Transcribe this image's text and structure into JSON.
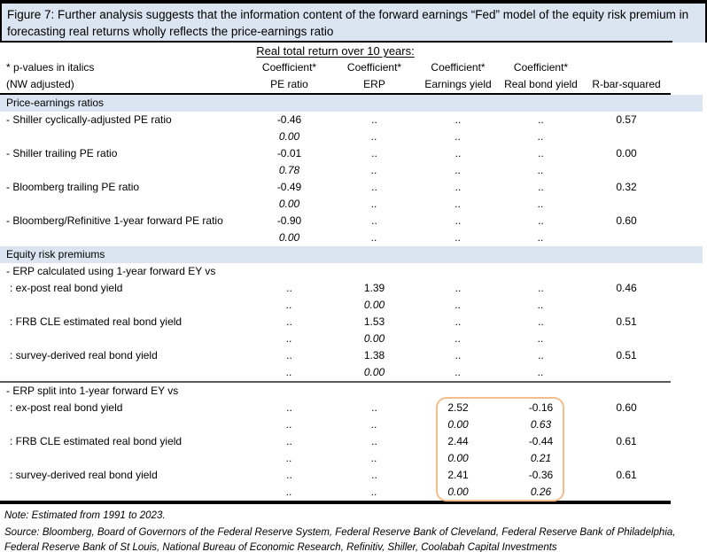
{
  "colors": {
    "section_fill": "#dbe5f1",
    "highlight_border": "#f4bd8a"
  },
  "figure": {
    "title": "Figure 7: Further analysis suggests that the information content of the forward earnings “Fed” model of the equity risk premium in forecasting real returns wholly reflects the price-earnings ratio",
    "note": "Note: Estimated from 1991 to 2023.",
    "source": "Source: Bloomberg, Board of Governors of the Federal Reserve System, Federal Reserve Bank of Cleveland, Federal Reserve Bank of Philadelphia, Federal Reserve Bank of St Louis, National Bureau of Economic Research, Refinitiv, Shiller, Coolabah Capital Investments"
  },
  "table": {
    "span_header": "Real total return over 10 years:",
    "left_header": {
      "line1": "* p-values in italics",
      "line2": "(NW adjusted)"
    },
    "columns": [
      {
        "line1": "Coefficient*",
        "line2": "PE ratio"
      },
      {
        "line1": "Coefficient*",
        "line2": "ERP"
      },
      {
        "line1": "Coefficient*",
        "line2": "Earnings yield"
      },
      {
        "line1": "Coefficient*",
        "line2": "Real bond yield"
      },
      {
        "line1": "",
        "line2": "R-bar-squared"
      }
    ],
    "rows": [
      {
        "type": "section",
        "label": "Price-earnings ratios"
      },
      {
        "type": "data",
        "label": "- Shiller cyclically-adjusted PE ratio",
        "cells": [
          "-0.46",
          "..",
          "..",
          "..",
          "0.57"
        ]
      },
      {
        "type": "pvals",
        "label": "",
        "cells": [
          "0.00",
          "..",
          "..",
          "..",
          ""
        ]
      },
      {
        "type": "data",
        "label": "- Shiller trailing PE ratio",
        "cells": [
          "-0.01",
          "..",
          "..",
          "..",
          "0.00"
        ]
      },
      {
        "type": "pvals",
        "label": "",
        "cells": [
          "0.78",
          "..",
          "..",
          "..",
          ""
        ]
      },
      {
        "type": "data",
        "label": "- Bloomberg trailing PE ratio",
        "cells": [
          "-0.49",
          "..",
          "..",
          "..",
          "0.32"
        ]
      },
      {
        "type": "pvals",
        "label": "",
        "cells": [
          "0.00",
          "..",
          "..",
          "..",
          ""
        ]
      },
      {
        "type": "data",
        "label": "- Bloomberg/Refinitive 1-year forward PE ratio",
        "cells": [
          "-0.90",
          "..",
          "..",
          "..",
          "0.60"
        ]
      },
      {
        "type": "pvals",
        "label": "",
        "cells": [
          "0.00",
          "..",
          "..",
          "..",
          ""
        ]
      },
      {
        "type": "section",
        "label": "Equity risk premiums"
      },
      {
        "type": "subsection",
        "label": "- ERP calculated using 1-year forward EY vs"
      },
      {
        "type": "data",
        "label": ": ex-post real bond yield",
        "cells": [
          "..",
          "1.39",
          "..",
          "..",
          "0.46"
        ]
      },
      {
        "type": "pvals",
        "label": "",
        "cells": [
          "..",
          "0.00",
          "..",
          "..",
          ""
        ]
      },
      {
        "type": "data",
        "label": ": FRB CLE estimated real bond yield",
        "cells": [
          "..",
          "1.53",
          "..",
          "..",
          "0.51"
        ]
      },
      {
        "type": "pvals",
        "label": "",
        "cells": [
          "..",
          "0.00",
          "..",
          "..",
          ""
        ]
      },
      {
        "type": "data",
        "label": ": survey-derived real bond yield",
        "cells": [
          "..",
          "1.38",
          "..",
          "..",
          "0.51"
        ]
      },
      {
        "type": "pvals",
        "label": "",
        "cells": [
          "..",
          "0.00",
          "..",
          "..",
          ""
        ]
      },
      {
        "type": "divider"
      },
      {
        "type": "subsection",
        "label": "- ERP split into 1-year forward EY vs"
      },
      {
        "type": "data",
        "label": ": ex-post real bond yield",
        "cells": [
          "..",
          "..",
          "2.52",
          "-0.16",
          "0.60"
        ]
      },
      {
        "type": "pvals",
        "label": "",
        "cells": [
          "..",
          "..",
          "0.00",
          "0.63",
          ""
        ]
      },
      {
        "type": "data",
        "label": ": FRB CLE estimated real bond yield",
        "cells": [
          "..",
          "..",
          "2.44",
          "-0.44",
          "0.61"
        ]
      },
      {
        "type": "pvals",
        "label": "",
        "cells": [
          "..",
          "..",
          "0.00",
          "0.21",
          ""
        ]
      },
      {
        "type": "data",
        "label": ": survey-derived real bond yield",
        "cells": [
          "..",
          "..",
          "2.41",
          "-0.36",
          "0.61"
        ]
      },
      {
        "type": "pvals",
        "label": "",
        "cells": [
          "..",
          "..",
          "0.00",
          "0.26",
          ""
        ]
      }
    ]
  }
}
